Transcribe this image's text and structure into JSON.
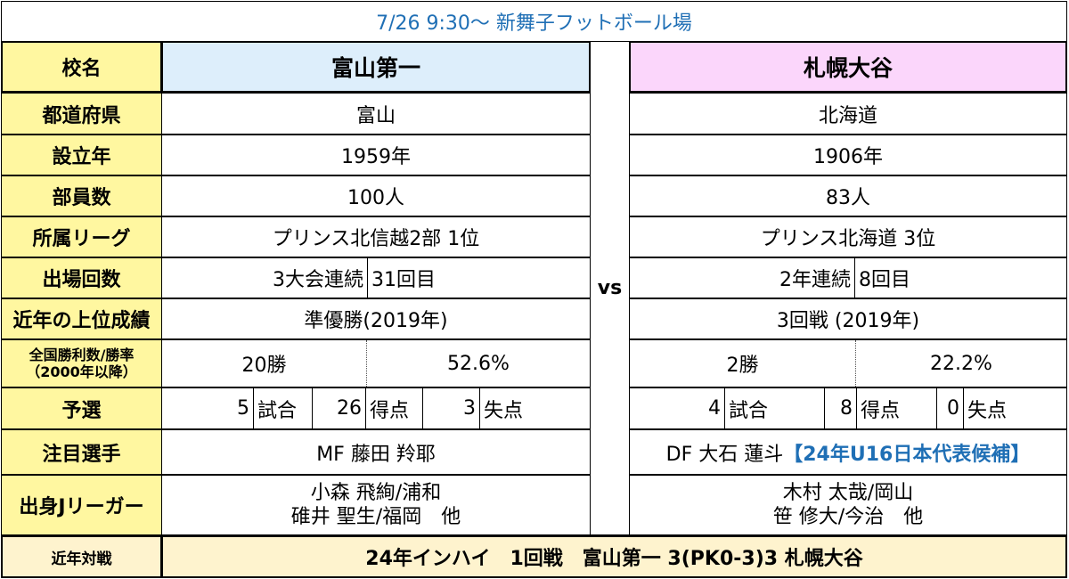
{
  "header": {
    "title": "7/26 9:30～ 新舞子フットボール場"
  },
  "labels": {
    "school": "校名",
    "prefecture": "都道府県",
    "founded": "設立年",
    "members": "部員数",
    "league": "所属リーグ",
    "appearances": "出場回数",
    "best": "近年の上位成績",
    "record_line1": "全国勝利数/勝率",
    "record_line2": "（2000年以降）",
    "qualifier": "予選",
    "key_player": "注目選手",
    "jleaguers": "出身Jリーガー",
    "recent": "近年対戦"
  },
  "vs": "vs",
  "teamA": {
    "name": "富山第一",
    "prefecture": "富山",
    "founded": "1959年",
    "members": "100人",
    "league": "プリンス北信越2部 1位",
    "appearances_streak": "3大会連続",
    "appearances_count": "31回目",
    "best": "準優勝(2019年)",
    "wins": "20勝",
    "win_rate": "52.6%",
    "q_games": "5",
    "q_games_unit": "試合",
    "q_goals": "26",
    "q_goals_unit": "得点",
    "q_conceded": "3",
    "q_conceded_unit": "失点",
    "key_player": "MF 藤田 羚耶",
    "key_player_note": "",
    "jleaguers_line1": "小森 飛絢/浦和",
    "jleaguers_line2": "碓井 聖生/福岡　他"
  },
  "teamB": {
    "name": "札幌大谷",
    "prefecture": "北海道",
    "founded": "1906年",
    "members": "83人",
    "league": "プリンス北海道 3位",
    "appearances_streak": "2年連続",
    "appearances_count": "8回目",
    "best": "3回戦 (2019年)",
    "wins": "2勝",
    "win_rate": "22.2%",
    "q_games": "4",
    "q_games_unit": "試合",
    "q_goals": "8",
    "q_goals_unit": "得点",
    "q_conceded": "0",
    "q_conceded_unit": "失点",
    "key_player": "DF 大石 蓮斗",
    "key_player_note": "【24年U16日本代表候補】",
    "jleaguers_line1": "木村 太哉/岡山",
    "jleaguers_line2": "笹 修大/今治　他"
  },
  "recent_match": "24年インハイ　1回戦　富山第一 3(PK0-3)3 札幌大谷",
  "colors": {
    "header_text": "#1F6FB5",
    "label_bg": "#FFF7A0",
    "recent_bg": "#FEF3CE",
    "teamA_bg": "#DDEEFB",
    "teamB_bg": "#FBD6FB",
    "note_text": "#1F6FB5"
  }
}
